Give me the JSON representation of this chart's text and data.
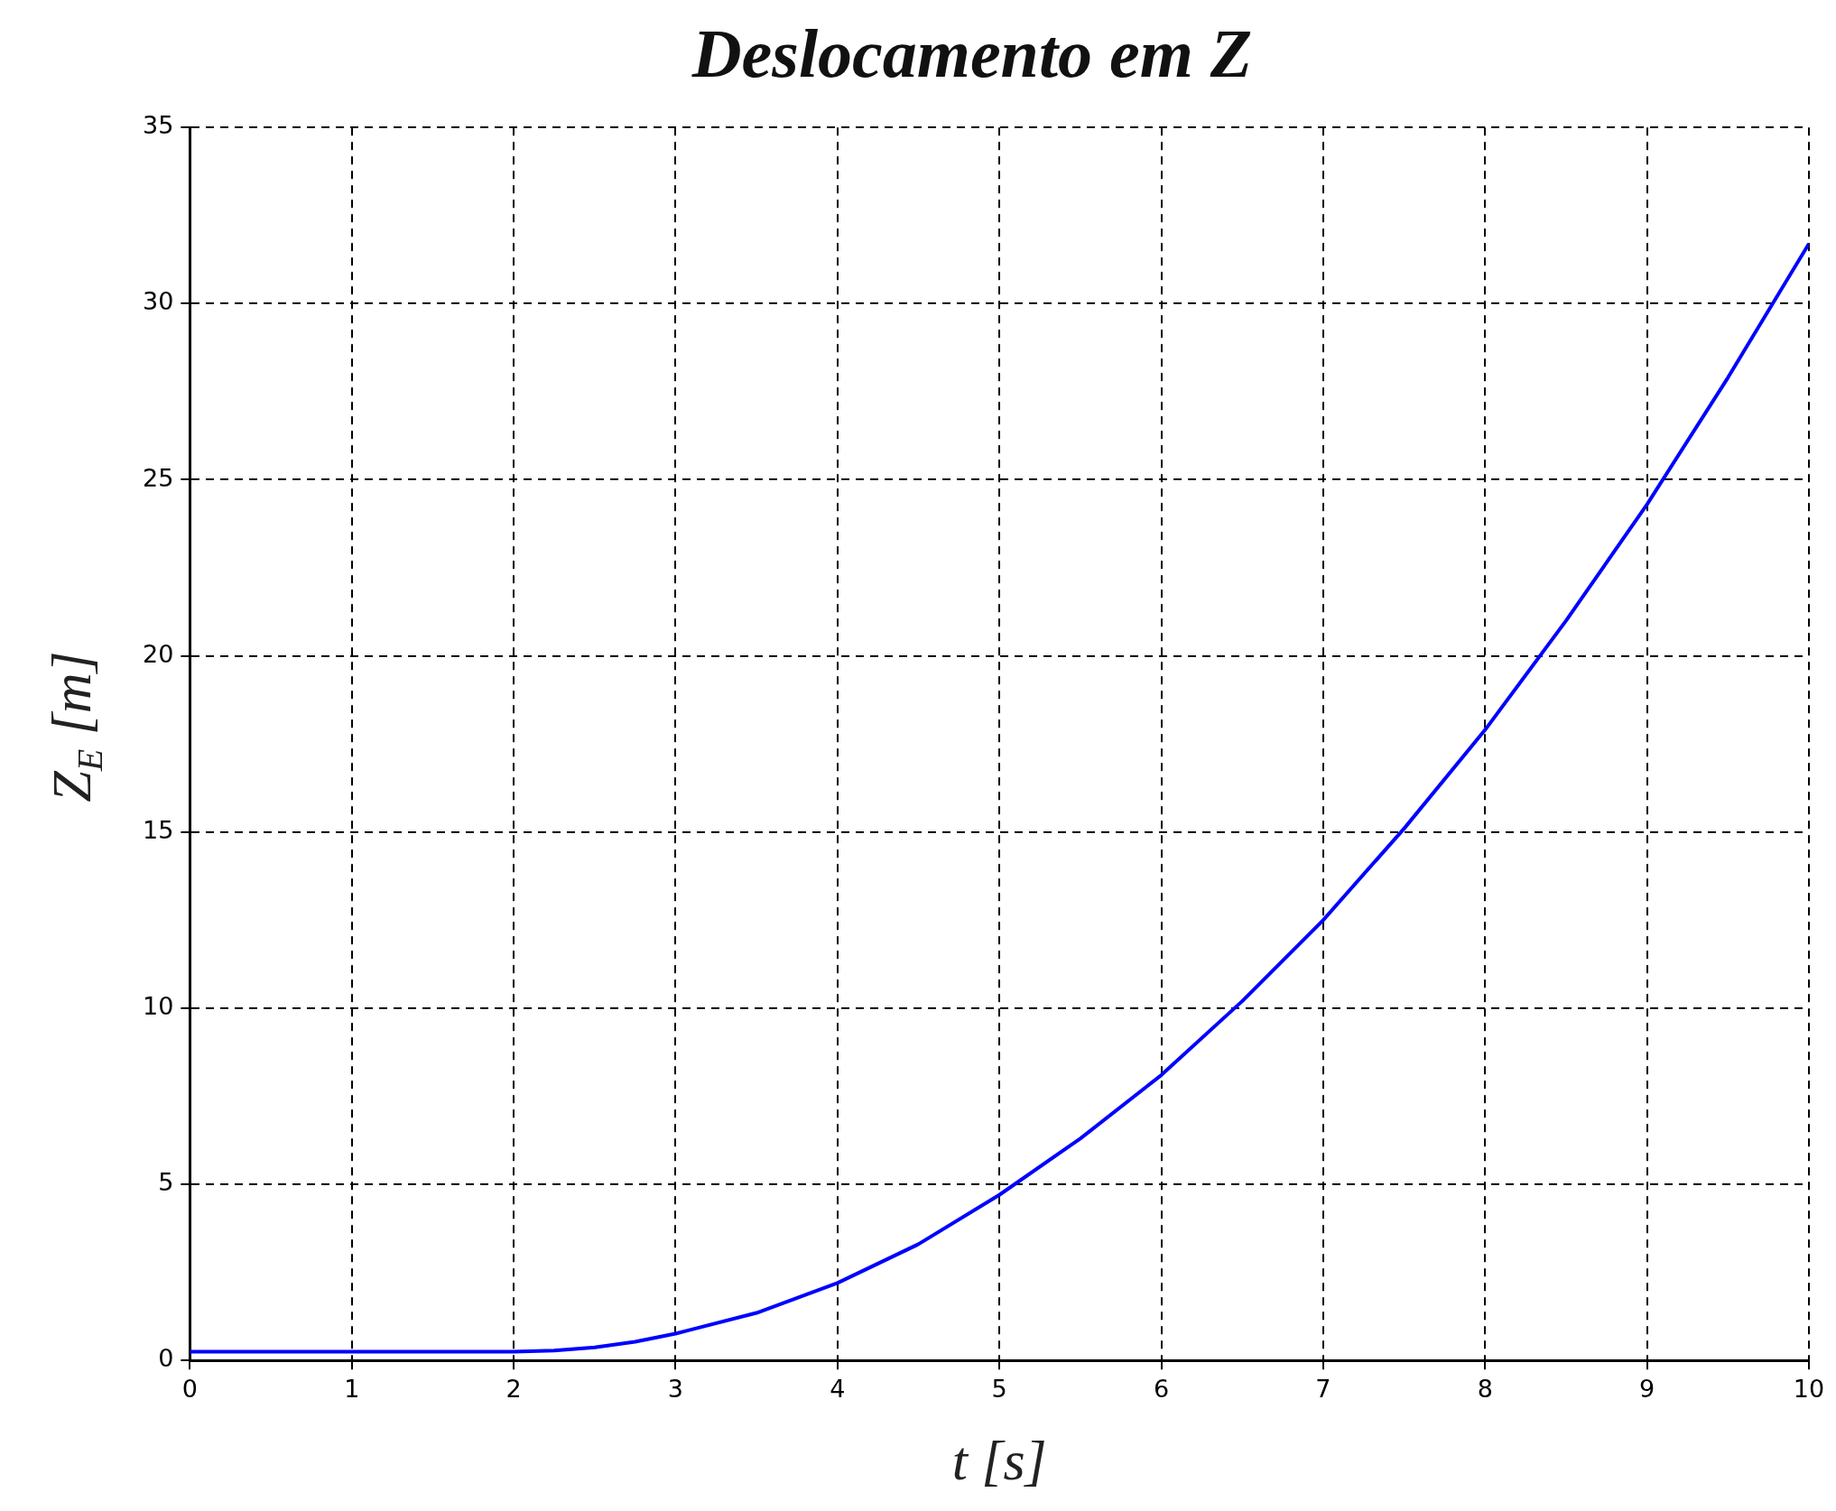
{
  "chart_data": {
    "type": "line",
    "title": "Deslocamento em Z",
    "xlabel": "t [s]",
    "ylabel": "Z$_{E}$ [m]",
    "x": [
      0,
      0.5,
      1,
      1.5,
      2,
      2.25,
      2.5,
      2.75,
      3,
      3.5,
      4,
      4.5,
      5,
      5.5,
      6,
      6.5,
      7,
      7.5,
      8,
      8.5,
      9,
      9.5,
      10
    ],
    "series": [
      {
        "color": "#0000ff",
        "values": [
          0.25,
          0.25,
          0.25,
          0.25,
          0.25,
          0.28,
          0.37,
          0.53,
          0.76,
          1.35,
          2.2,
          3.3,
          4.7,
          6.3,
          8.1,
          10.2,
          12.5,
          15.1,
          17.9,
          21.0,
          24.3,
          27.9,
          31.7
        ]
      }
    ],
    "xlim": [
      0,
      10
    ],
    "xticks": [
      0,
      1,
      2,
      3,
      4,
      5,
      6,
      7,
      8,
      9,
      10
    ],
    "ylim": [
      0,
      35
    ],
    "yticks": [
      0,
      5,
      10,
      15,
      20,
      25,
      30,
      35
    ],
    "grid": true,
    "legend": false,
    "marker": "none",
    "line_style": "solid"
  }
}
